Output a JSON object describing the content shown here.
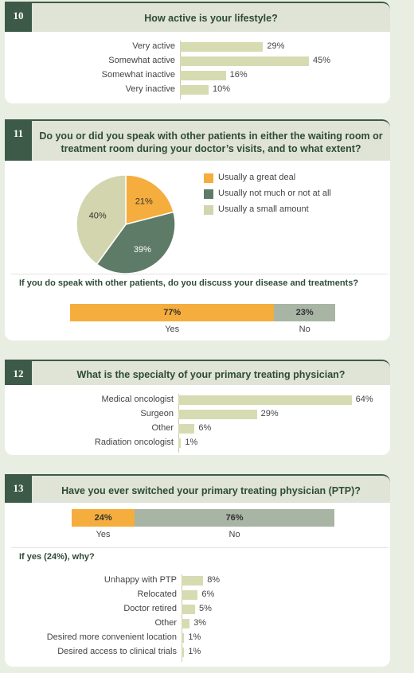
{
  "colors": {
    "bar": "#d7dbb1",
    "accent": "#f5ad3d",
    "dark": "#3c5a47",
    "grey": "#a8b4a4",
    "mid": "#5e7b67",
    "pale": "#d2d5ad"
  },
  "q10": {
    "number": "10",
    "question": "How active is your lifestyle?"
  },
  "q11": {
    "number": "11",
    "question_line1": "Do you or did you speak with other patients in either the waiting room or",
    "question_line2": "treatment room during your doctor’s visits, and to what extent?",
    "subquestion": "If you do speak with other patients, do you discuss your disease and treatments?"
  },
  "q12": {
    "number": "12",
    "question": "What is the specialty of your primary treating physician?"
  },
  "q13": {
    "number": "13",
    "question": "Have you ever switched your primary treating physician (PTP)?",
    "subquestion": "If yes (24%), why?"
  },
  "chart_data": [
    {
      "type": "bar",
      "orientation": "horizontal",
      "categories": [
        "Very active",
        "Somewhat active",
        "Somewhat inactive",
        "Very inactive"
      ],
      "values": [
        29,
        45,
        16,
        10
      ],
      "value_labels": [
        "29%",
        "45%",
        "16%",
        "10%"
      ],
      "xlim": [
        0,
        100
      ]
    },
    {
      "type": "pie",
      "categories": [
        "Usually a great deal",
        "Usually not much or not at all",
        "Usually a small amount"
      ],
      "values": [
        21,
        39,
        40
      ],
      "value_labels": [
        "21%",
        "39%",
        "40%"
      ],
      "colors": [
        "#f5ad3d",
        "#5e7b67",
        "#d2d5ad"
      ],
      "legend": "right"
    },
    {
      "type": "bar",
      "orientation": "horizontal",
      "stacked": true,
      "categories": [
        "Yes",
        "No"
      ],
      "values": [
        77,
        23
      ],
      "value_labels": [
        "77%",
        "23%"
      ],
      "colors": [
        "#f5ad3d",
        "#a8b4a4"
      ]
    },
    {
      "type": "bar",
      "orientation": "horizontal",
      "categories": [
        "Medical oncologist",
        "Surgeon",
        "Other",
        "Radiation oncologist"
      ],
      "values": [
        64,
        29,
        6,
        1
      ],
      "value_labels": [
        "64%",
        "29%",
        "6%",
        "1%"
      ],
      "xlim": [
        0,
        100
      ]
    },
    {
      "type": "bar",
      "orientation": "horizontal",
      "stacked": true,
      "categories": [
        "Yes",
        "No"
      ],
      "values": [
        24,
        76
      ],
      "value_labels": [
        "24%",
        "76%"
      ],
      "colors": [
        "#f5ad3d",
        "#a8b4a4"
      ]
    },
    {
      "type": "bar",
      "orientation": "horizontal",
      "categories": [
        "Unhappy with PTP",
        "Relocated",
        "Doctor retired",
        "Other",
        "Desired more convenient location",
        "Desired access to clinical trials"
      ],
      "values": [
        8,
        6,
        5,
        3,
        1,
        1
      ],
      "value_labels": [
        "8%",
        "6%",
        "5%",
        "3%",
        "1%",
        "1%"
      ],
      "xlim": [
        0,
        100
      ]
    }
  ]
}
